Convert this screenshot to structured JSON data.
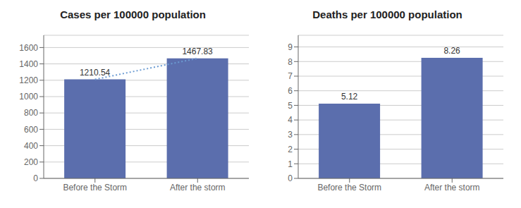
{
  "chart_data": [
    {
      "type": "bar",
      "title": "Cases per 100000 population",
      "categories": [
        "Before the Storm",
        "After the storm"
      ],
      "series": [
        {
          "type": "bar",
          "color": "#5B6EAD",
          "values": [
            1210.54,
            1467.83
          ]
        },
        {
          "type": "line",
          "color": "#6B9BD2",
          "line_style": "dotted",
          "values": [
            1210.54,
            1467.83
          ]
        }
      ],
      "ylim": [
        0,
        1750
      ],
      "yticks": [
        0,
        200,
        400,
        600,
        800,
        1000,
        1200,
        1400,
        1600
      ],
      "grid": true,
      "data_labels": true
    },
    {
      "type": "bar",
      "title": "Deaths per 100000 population",
      "categories": [
        "Before the Storm",
        "After the storm"
      ],
      "series": [
        {
          "type": "bar",
          "color": "#5B6EAD",
          "values": [
            5.12,
            8.26
          ]
        }
      ],
      "ylim": [
        0,
        9.8
      ],
      "yticks": [
        0,
        1,
        2,
        3,
        4,
        5,
        6,
        7,
        8,
        9
      ],
      "grid": true,
      "data_labels": true
    }
  ]
}
